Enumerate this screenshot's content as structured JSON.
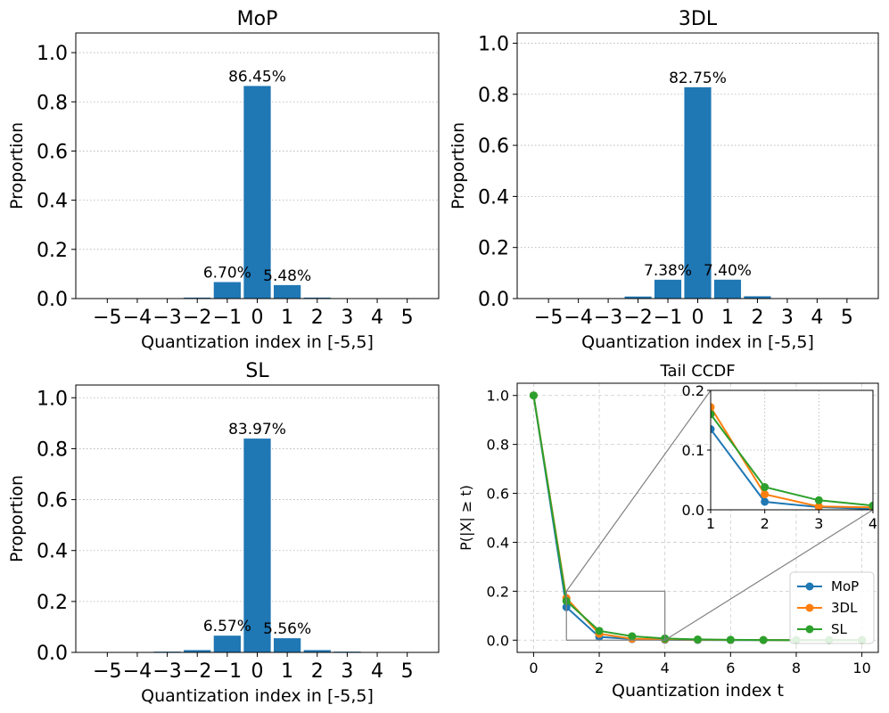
{
  "chart_data": [
    {
      "type": "bar",
      "title": "MoP",
      "xlabel": "Quantization index in [-5,5]",
      "ylabel": "Proportion",
      "categories": [
        -5,
        -4,
        -3,
        -2,
        -1,
        0,
        1,
        2,
        3,
        4,
        5
      ],
      "xtick_labels": [
        "−5",
        "−4",
        "−3",
        "−2",
        "−1",
        "0",
        "1",
        "2",
        "3",
        "4",
        "5"
      ],
      "values": [
        0.0002,
        0.0004,
        0.001,
        0.004,
        0.067,
        0.8645,
        0.0548,
        0.004,
        0.0012,
        0.0004,
        0.0002
      ],
      "ylim": [
        0,
        1.08
      ],
      "yticks": [
        0.0,
        0.2,
        0.4,
        0.6,
        0.8,
        1.0
      ],
      "ytick_labels": [
        "0.0",
        "0.2",
        "0.4",
        "0.6",
        "0.8",
        "1.0"
      ],
      "grid": "y dotted",
      "annotations": [
        {
          "x": 0,
          "value": 0.8645,
          "text": "86.45%"
        },
        {
          "x": -1,
          "value": 0.067,
          "text": "6.70%"
        },
        {
          "x": 1,
          "value": 0.0548,
          "text": "5.48%"
        }
      ],
      "color": "#1f77b4"
    },
    {
      "type": "bar",
      "title": "3DL",
      "xlabel": "Quantization index in [-5,5]",
      "ylabel": "Proportion",
      "categories": [
        -5,
        -4,
        -3,
        -2,
        -1,
        0,
        1,
        2,
        3,
        4,
        5
      ],
      "xtick_labels": [
        "−5",
        "−4",
        "−3",
        "−2",
        "−1",
        "0",
        "1",
        "2",
        "3",
        "4",
        "5"
      ],
      "values": [
        0.0002,
        0.0004,
        0.001,
        0.008,
        0.0738,
        0.8275,
        0.074,
        0.009,
        0.0012,
        0.0004,
        0.0002
      ],
      "ylim": [
        0,
        1.04
      ],
      "yticks": [
        0.0,
        0.2,
        0.4,
        0.6,
        0.8,
        1.0
      ],
      "ytick_labels": [
        "0.0",
        "0.2",
        "0.4",
        "0.6",
        "0.8",
        "1.0"
      ],
      "grid": "y dotted",
      "annotations": [
        {
          "x": 0,
          "value": 0.8275,
          "text": "82.75%"
        },
        {
          "x": -1,
          "value": 0.0738,
          "text": "7.38%"
        },
        {
          "x": 1,
          "value": 0.074,
          "text": "7.40%"
        }
      ],
      "color": "#1f77b4"
    },
    {
      "type": "bar",
      "title": "SL",
      "xlabel": "Quantization index in [-5,5]",
      "ylabel": "Proportion",
      "categories": [
        -5,
        -4,
        -3,
        -2,
        -1,
        0,
        1,
        2,
        3,
        4,
        5
      ],
      "xtick_labels": [
        "−5",
        "−4",
        "−3",
        "−2",
        "−1",
        "0",
        "1",
        "2",
        "3",
        "4",
        "5"
      ],
      "values": [
        0.0003,
        0.001,
        0.003,
        0.009,
        0.0657,
        0.8397,
        0.0556,
        0.009,
        0.003,
        0.001,
        0.0003
      ],
      "ylim": [
        0,
        1.05
      ],
      "yticks": [
        0.0,
        0.2,
        0.4,
        0.6,
        0.8,
        1.0
      ],
      "ytick_labels": [
        "0.0",
        "0.2",
        "0.4",
        "0.6",
        "0.8",
        "1.0"
      ],
      "grid": "y dotted",
      "annotations": [
        {
          "x": 0,
          "value": 0.8397,
          "text": "83.97%"
        },
        {
          "x": -1,
          "value": 0.0657,
          "text": "6.57%"
        },
        {
          "x": 1,
          "value": 0.0556,
          "text": "5.56%"
        }
      ],
      "color": "#1f77b4"
    },
    {
      "type": "line",
      "title": "Tail CCDF",
      "xlabel": "Quantization index t",
      "ylabel": "P(|X| ≥ t)",
      "x": [
        0,
        1,
        2,
        3,
        4,
        5,
        6,
        7,
        8,
        9,
        10
      ],
      "series": [
        {
          "name": "MoP",
          "color": "#1f77b4",
          "values": [
            1.0,
            0.135,
            0.0135,
            0.0045,
            0.0015,
            0.0008,
            0.0004,
            0.0002,
            0.0001,
            0.0,
            0.0
          ]
        },
        {
          "name": "3DL",
          "color": "#ff7f0e",
          "values": [
            1.0,
            0.172,
            0.026,
            0.0055,
            0.004,
            0.002,
            0.001,
            0.0005,
            0.0002,
            0.0001,
            0.0
          ]
        },
        {
          "name": "SL",
          "color": "#2ca02c",
          "values": [
            1.0,
            0.16,
            0.038,
            0.016,
            0.007,
            0.003,
            0.0015,
            0.0007,
            0.0003,
            0.0001,
            0.0
          ]
        }
      ],
      "xlim": [
        -0.5,
        10.5
      ],
      "ylim": [
        -0.05,
        1.05
      ],
      "xticks": [
        0,
        2,
        4,
        6,
        8,
        10
      ],
      "xtick_labels": [
        "0",
        "2",
        "4",
        "6",
        "8",
        "10"
      ],
      "yticks": [
        0.0,
        0.2,
        0.4,
        0.6,
        0.8,
        1.0
      ],
      "ytick_labels": [
        "0.0",
        "0.2",
        "0.4",
        "0.6",
        "0.8",
        "1.0"
      ],
      "grid": "both dashed",
      "legend": "bottom-right",
      "zoom_region": {
        "x": [
          1,
          4
        ],
        "y": [
          0,
          0.2
        ]
      },
      "inset": {
        "xlim": [
          1,
          4
        ],
        "ylim": [
          0,
          0.2
        ],
        "xticks": [
          1,
          2,
          3,
          4
        ],
        "xtick_labels": [
          "1",
          "2",
          "3",
          "4"
        ],
        "yticks": [
          0.0,
          0.1,
          0.2
        ],
        "ytick_labels": [
          "0.0",
          "0.1",
          "0.2"
        ],
        "grid": "both dotted"
      }
    }
  ]
}
